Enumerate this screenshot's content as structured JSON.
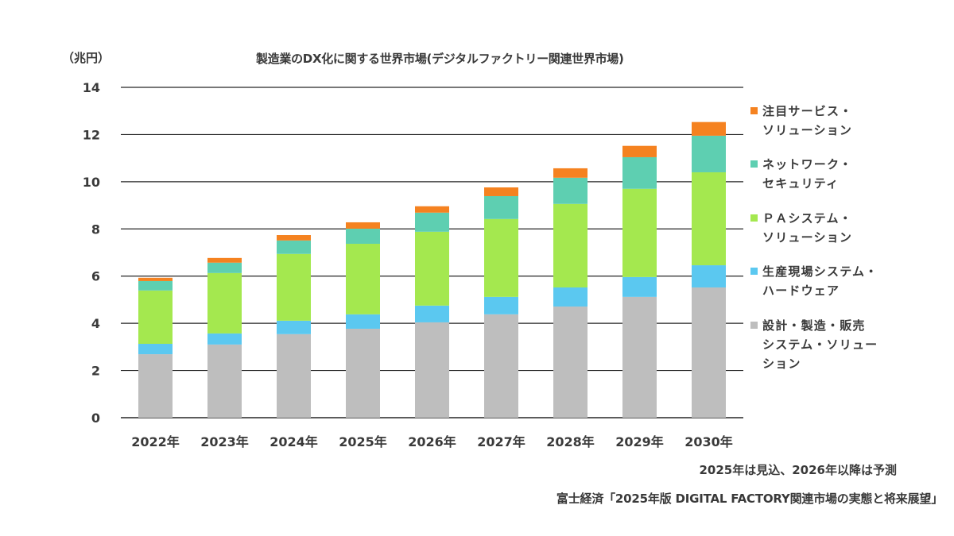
{
  "chart_data": {
    "type": "bar",
    "stacked": true,
    "title": "製造業のDX化に関する世界市場(デジタルファクトリー関連世界市場)",
    "ylabel": "（兆円）",
    "xlabel": "",
    "ylim": [
      0,
      14
    ],
    "yticks": [
      0,
      2,
      4,
      6,
      8,
      10,
      12,
      14
    ],
    "grid": true,
    "legend_position": "right",
    "categories": [
      "2022年",
      "2023年",
      "2024年",
      "2025年",
      "2026年",
      "2027年",
      "2028年",
      "2029年",
      "2030年"
    ],
    "series": [
      {
        "name": "設計・製造・販売システム・ソリューション",
        "legend_label": "設計・製造・販売\nシステム・ソリュー\nション",
        "color": "#BEBEBE",
        "values": [
          2.69,
          3.1,
          3.54,
          3.77,
          4.04,
          4.38,
          4.71,
          5.12,
          5.52
        ]
      },
      {
        "name": "生産現場システム・ハードウェア",
        "legend_label": "生産現場システム・\nハードウェア",
        "color": "#5BC8F0",
        "values": [
          0.44,
          0.47,
          0.57,
          0.61,
          0.71,
          0.74,
          0.81,
          0.84,
          0.94
        ]
      },
      {
        "name": "ＰＡシステム・ソリューション",
        "legend_label": "ＰＡシステム・\nソリューション",
        "color": "#A4E84F",
        "values": [
          2.26,
          2.56,
          2.83,
          2.99,
          3.13,
          3.3,
          3.54,
          3.74,
          3.94
        ]
      },
      {
        "name": "ネットワーク・セキュリティ",
        "legend_label": "ネットワーク・\nセキュリティ",
        "color": "#5ECFB1",
        "values": [
          0.4,
          0.44,
          0.57,
          0.64,
          0.81,
          0.97,
          1.11,
          1.34,
          1.55
        ]
      },
      {
        "name": "注目サービス・ソリューション",
        "legend_label": "注目サービス・\nソリューション",
        "color": "#F58220",
        "values": [
          0.14,
          0.2,
          0.23,
          0.27,
          0.27,
          0.37,
          0.4,
          0.48,
          0.58
        ]
      }
    ],
    "annotations": [
      "2025年は見込、2026年以降は予測",
      "富士経済「2025年版 DIGITAL FACTORY関連市場の実態と将来展望」"
    ]
  },
  "header": {
    "unit": "（兆円）",
    "title": "製造業のDX化に関する世界市場(デジタルファクトリー関連世界市場)"
  },
  "legend": {
    "items": [
      {
        "label": "注目サービス・\nソリューション",
        "color": "#F58220"
      },
      {
        "label": "ネットワーク・\nセキュリティ",
        "color": "#5ECFB1"
      },
      {
        "label": "ＰＡシステム・\nソリューション",
        "color": "#A4E84F"
      },
      {
        "label": "生産現場システム・\nハードウェア",
        "color": "#5BC8F0"
      },
      {
        "label": "設計・製造・販売\nシステム・ソリュー\nション",
        "color": "#BEBEBE"
      }
    ]
  },
  "footer": {
    "note": "2025年は見込、2026年以降は予測",
    "source": "富士経済「2025年版 DIGITAL FACTORY関連市場の実態と将来展望」"
  }
}
